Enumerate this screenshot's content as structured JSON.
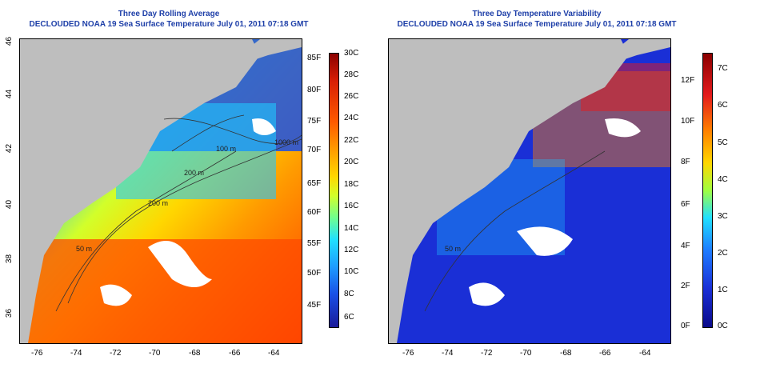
{
  "left": {
    "title_line1": "Three Day Rolling Average",
    "title_line2": "DECLOUDED NOAA 19 Sea Surface Temperature July 01, 2011 07:18 GMT",
    "x_ticks": [
      "-76",
      "-74",
      "-72",
      "-70",
      "-68",
      "-66",
      "-64"
    ],
    "y_ticks": [
      "36",
      "38",
      "40",
      "42",
      "44",
      "46"
    ],
    "contour_labels": [
      "1000 m",
      "100 m",
      "200 m",
      "200 m",
      "50 m"
    ],
    "colorbar": {
      "celsius": [
        "30C",
        "28C",
        "26C",
        "24C",
        "22C",
        "20C",
        "18C",
        "16C",
        "14C",
        "12C",
        "10C",
        "8C",
        "6C"
      ],
      "fahrenheit": [
        "85F",
        "80F",
        "75F",
        "70F",
        "65F",
        "60F",
        "55F",
        "50F",
        "45F"
      ],
      "colors": [
        "#8b0000",
        "#d81e05",
        "#ff5a00",
        "#ff9b00",
        "#ffd700",
        "#d2ff2a",
        "#6fff8f",
        "#20e0ff",
        "#1e9bff",
        "#1a4fe6",
        "#1a1a99"
      ]
    }
  },
  "right": {
    "title_line1": "Three Day Temperature Variability",
    "title_line2": "DECLOUDED NOAA 19 Sea Surface Temperature July 01, 2011 07:18 GMT",
    "x_ticks": [
      "-76",
      "-74",
      "-72",
      "-70",
      "-68",
      "-66",
      "-64"
    ],
    "contour_labels": [
      "50 m"
    ],
    "colorbar": {
      "celsius": [
        "7C",
        "6C",
        "5C",
        "4C",
        "3C",
        "2C",
        "1C",
        "0C"
      ],
      "fahrenheit": [
        "12F",
        "10F",
        "8F",
        "6F",
        "4F",
        "2F",
        "0F"
      ],
      "colors": [
        "#8b0000",
        "#e31a1c",
        "#ff7f00",
        "#ffd700",
        "#a0ff40",
        "#20e0ff",
        "#1e7bff",
        "#1a2fd6",
        "#0a0a8a"
      ]
    }
  },
  "palette": {
    "land": "#bebebe",
    "title": "#1e3fa8"
  }
}
